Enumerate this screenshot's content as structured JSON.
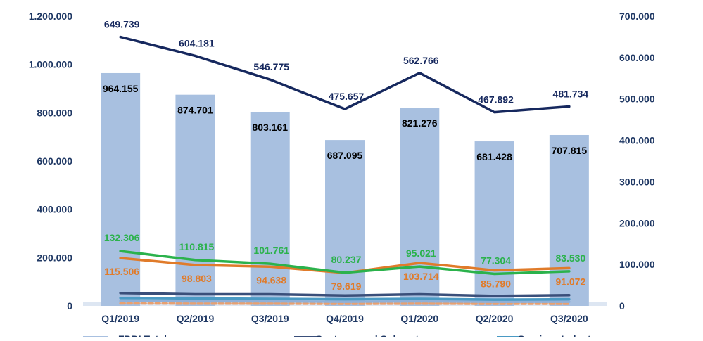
{
  "chart_data": {
    "type": "bar",
    "categories": [
      "Q1/2019",
      "Q2/2019",
      "Q3/2019",
      "Q4/2019",
      "Q1/2020",
      "Q2/2020",
      "Q3/2020"
    ],
    "left_axis": {
      "ylim": [
        0,
        1200000
      ],
      "ticks": [
        0,
        200000,
        400000,
        600000,
        800000,
        1000000,
        1200000
      ],
      "tick_labels": [
        "0",
        "200.000",
        "400.000",
        "600.000",
        "800.000",
        "1.000.000",
        "1.200.000"
      ]
    },
    "right_axis": {
      "ylim": [
        0,
        700000
      ],
      "ticks": [
        0,
        100000,
        200000,
        300000,
        400000,
        500000,
        600000,
        700000
      ],
      "tick_labels": [
        "0",
        "100.000",
        "200.000",
        "300.000",
        "400.000",
        "500.000",
        "600.000",
        "700.000"
      ]
    },
    "bars": {
      "axis": "left",
      "color": "#a8c0e0",
      "values": [
        964155,
        874701,
        803161,
        687095,
        821276,
        681428,
        707815
      ],
      "labels": [
        "964.155",
        "874.701",
        "803.161",
        "687.095",
        "821.276",
        "681.428",
        "707.815"
      ]
    },
    "lines": [
      {
        "axis": "right",
        "color": "#16285e",
        "values": [
          649739,
          604181,
          546775,
          475657,
          562766,
          467892,
          481734
        ],
        "labels": [
          "649.739",
          "604.181",
          "546.775",
          "475.657",
          "562.766",
          "467.892",
          "481.734"
        ]
      },
      {
        "axis": "right",
        "color": "#2bb24c",
        "values": [
          132306,
          110815,
          101761,
          80237,
          95021,
          77304,
          83530
        ],
        "labels": [
          "132.306",
          "110.815",
          "101.761",
          "80.237",
          "95.021",
          "77.304",
          "83.530"
        ]
      },
      {
        "axis": "right",
        "color": "#e07b2a",
        "values": [
          115506,
          98803,
          94638,
          79619,
          103714,
          85790,
          91072
        ],
        "labels": [
          "115.506",
          "98.803",
          "94.638",
          "79.619",
          "103.714",
          "85.790",
          "91.072"
        ]
      },
      {
        "axis": "right",
        "color": "#3a4f7a",
        "values": [
          31000,
          28000,
          28000,
          25000,
          28000,
          24000,
          26000
        ],
        "labels": []
      },
      {
        "axis": "right",
        "color": "#4a9ac4",
        "values": [
          19000,
          18000,
          17000,
          16000,
          17000,
          15000,
          16000
        ],
        "labels": []
      },
      {
        "axis": "right",
        "color": "#8fb0d8",
        "values": [
          12000,
          11000,
          11000,
          10000,
          11000,
          10000,
          10000
        ],
        "labels": []
      },
      {
        "axis": "right",
        "color": "#e8a070",
        "dashed": true,
        "values": [
          6000,
          5500,
          5500,
          5000,
          5500,
          5000,
          5000
        ],
        "labels": []
      }
    ],
    "legend_partial": [
      "FDDI Total",
      "Customs and Subsectors",
      "Services Indust..."
    ],
    "colors": {
      "axis_text": "#1f3864",
      "bar_label": "#000000",
      "grid": "none"
    }
  }
}
